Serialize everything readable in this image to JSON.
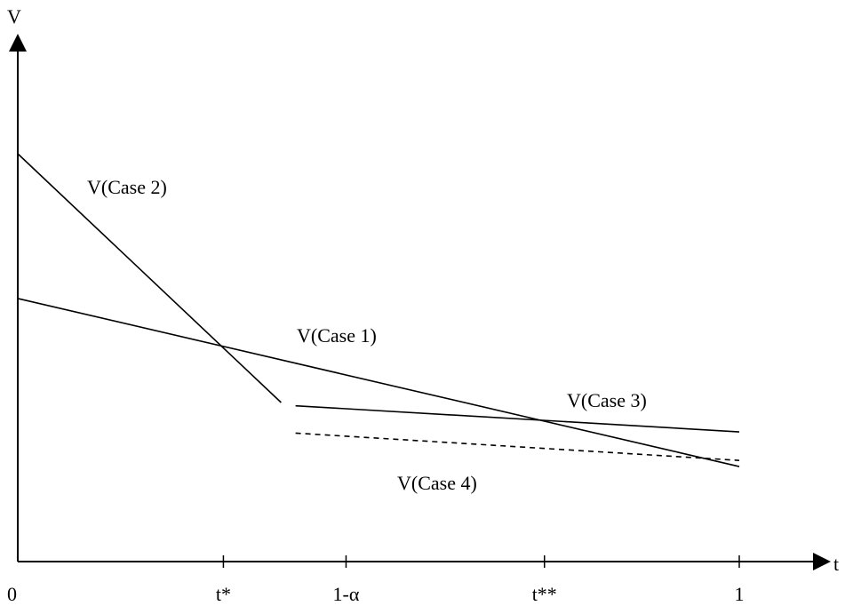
{
  "axes": {
    "y_label": "V",
    "x_label": "t"
  },
  "ticks": [
    {
      "label": "0",
      "t": 0.0
    },
    {
      "label": "t*",
      "t": 0.285
    },
    {
      "label": "1-α",
      "t": 0.455
    },
    {
      "label": "t**",
      "t": 0.73
    },
    {
      "label": "1",
      "t": 1.0
    }
  ],
  "cases": [
    {
      "name": "V(Case 1)",
      "style": "solid",
      "points": [
        [
          0.0,
          0.645
        ],
        [
          1.0,
          0.233
        ]
      ]
    },
    {
      "name": "V(Case 2)",
      "style": "solid",
      "points": [
        [
          0.0,
          1.0
        ],
        [
          0.365,
          0.39
        ]
      ]
    },
    {
      "name": "V(Case 3)",
      "style": "solid",
      "points": [
        [
          0.385,
          0.382
        ],
        [
          1.0,
          0.318
        ]
      ]
    },
    {
      "name": "V(Case 4)",
      "style": "dashed",
      "points": [
        [
          0.385,
          0.315
        ],
        [
          1.0,
          0.248
        ]
      ]
    }
  ]
}
